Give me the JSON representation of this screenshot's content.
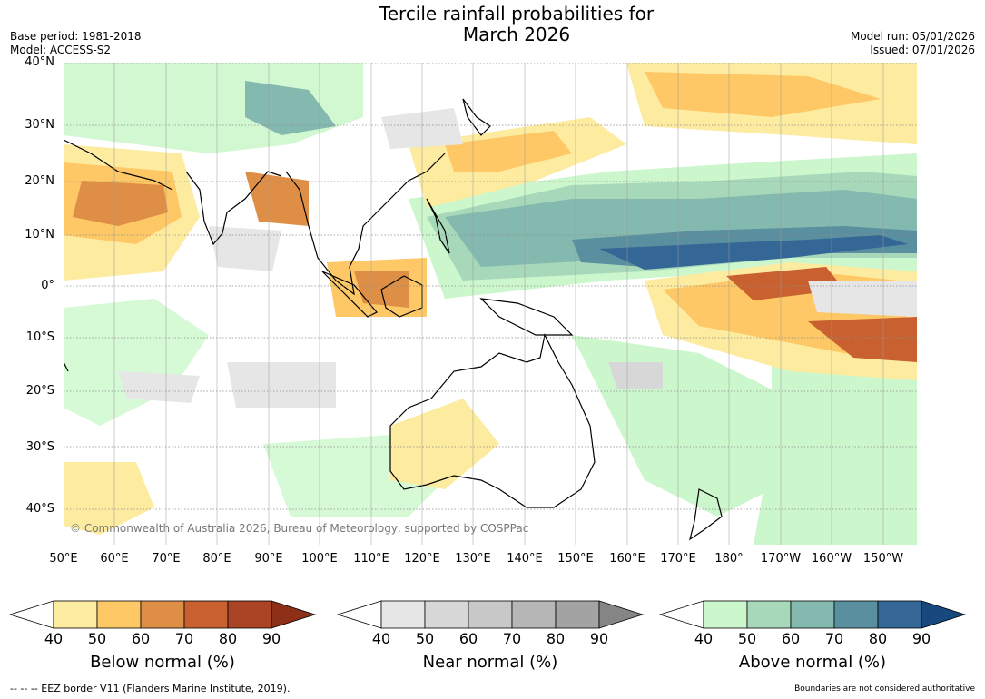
{
  "title": {
    "line1": "Tercile rainfall probabilities for",
    "line2": "March 2026"
  },
  "meta_left": {
    "base_period": "Base period: 1981-2018",
    "model": "Model: ACCESS-S2"
  },
  "meta_right": {
    "model_run": "Model run: 05/01/2026",
    "issued": "Issued: 07/01/2026"
  },
  "copyright": "© Commonwealth of Australia 2026, Bureau of Meteorology, supported by COSPPac",
  "lat_labels": [
    "40°N",
    "30°N",
    "20°N",
    "10°N",
    "0°",
    "10°S",
    "20°S",
    "30°S",
    "40°S"
  ],
  "lon_labels": [
    "50°E",
    "60°E",
    "70°E",
    "80°E",
    "90°E",
    "100°E",
    "110°E",
    "120°E",
    "130°E",
    "140°E",
    "150°E",
    "160°E",
    "170°E",
    "180°",
    "170°W",
    "160°W",
    "150°W"
  ],
  "colorbars": {
    "below": {
      "title": "Below normal (%)",
      "ticks": [
        "40",
        "50",
        "60",
        "70",
        "80",
        "90"
      ],
      "colors": [
        "#ffffff",
        "#fdeba0",
        "#fdc865",
        "#df8f45",
        "#c8612f",
        "#ab4425",
        "#8e3017"
      ]
    },
    "near": {
      "title": "Near normal (%)",
      "ticks": [
        "40",
        "50",
        "60",
        "70",
        "80",
        "90"
      ],
      "colors": [
        "#ffffff",
        "#e6e6e6",
        "#d7d7d7",
        "#c8c8c8",
        "#b6b6b6",
        "#a3a3a3",
        "#858585"
      ]
    },
    "above": {
      "title": "Above normal (%)",
      "ticks": [
        "40",
        "50",
        "60",
        "70",
        "80",
        "90"
      ],
      "colors": [
        "#ffffff",
        "#ccf7cc",
        "#a6d8b9",
        "#84b9af",
        "#5a8fa0",
        "#346796",
        "#17497e"
      ]
    }
  },
  "footer": {
    "eez": "--  --  -- EEZ border V11 (Flanders Marine Institute, 2019).",
    "disclaimer": "Boundaries are not considered authoritative"
  }
}
